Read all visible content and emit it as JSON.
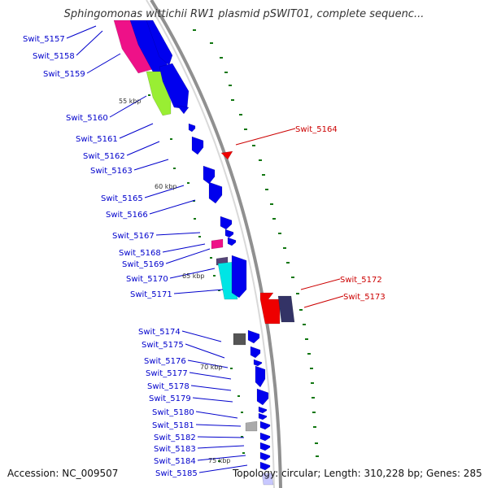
{
  "title": "Sphingomonas wittichii RW1 plasmid pSWIT01, complete sequenc...",
  "footer": {
    "accession": "Accession: NC_009507",
    "topology": "Topology: circular; Length: 310,228 bp; Genes: 285"
  },
  "colors": {
    "cds_forward": "#0000ee",
    "cds_reverse_highlight": "#ee0000",
    "magenta": "#ee1188",
    "lime": "#99ee33",
    "cyan": "#00e5e5",
    "gray": "#666666",
    "label_blue": "#0000cc",
    "label_red": "#cc0000",
    "tick_green": "#117711",
    "backbone": "#888888"
  },
  "scale_ticks": [
    "55 kbp",
    "60 kbp",
    "65 kbp",
    "70 kbp",
    "75 kbp"
  ],
  "gene_labels": [
    {
      "name": "Swit_5157",
      "color": "blue"
    },
    {
      "name": "Swit_5158",
      "color": "blue"
    },
    {
      "name": "Swit_5159",
      "color": "blue"
    },
    {
      "name": "Swit_5160",
      "color": "blue"
    },
    {
      "name": "Swit_5161",
      "color": "blue"
    },
    {
      "name": "Swit_5162",
      "color": "blue"
    },
    {
      "name": "Swit_5163",
      "color": "blue"
    },
    {
      "name": "Swit_5164",
      "color": "red"
    },
    {
      "name": "Swit_5165",
      "color": "blue"
    },
    {
      "name": "Swit_5166",
      "color": "blue"
    },
    {
      "name": "Swit_5167",
      "color": "blue"
    },
    {
      "name": "Swit_5168",
      "color": "blue"
    },
    {
      "name": "Swit_5169",
      "color": "blue"
    },
    {
      "name": "Swit_5170",
      "color": "blue"
    },
    {
      "name": "Swit_5171",
      "color": "blue"
    },
    {
      "name": "Swit_5172",
      "color": "red"
    },
    {
      "name": "Swit_5173",
      "color": "red"
    },
    {
      "name": "Swit_5174",
      "color": "blue"
    },
    {
      "name": "Swit_5175",
      "color": "blue"
    },
    {
      "name": "Swit_5176",
      "color": "blue"
    },
    {
      "name": "Swit_5177",
      "color": "blue"
    },
    {
      "name": "Swit_5178",
      "color": "blue"
    },
    {
      "name": "Swit_5179",
      "color": "blue"
    },
    {
      "name": "Swit_5180",
      "color": "blue"
    },
    {
      "name": "Swit_5181",
      "color": "blue"
    },
    {
      "name": "Swit_5182",
      "color": "blue"
    },
    {
      "name": "Swit_5183",
      "color": "blue"
    },
    {
      "name": "Swit_5184",
      "color": "blue"
    },
    {
      "name": "Swit_5185",
      "color": "blue"
    }
  ]
}
